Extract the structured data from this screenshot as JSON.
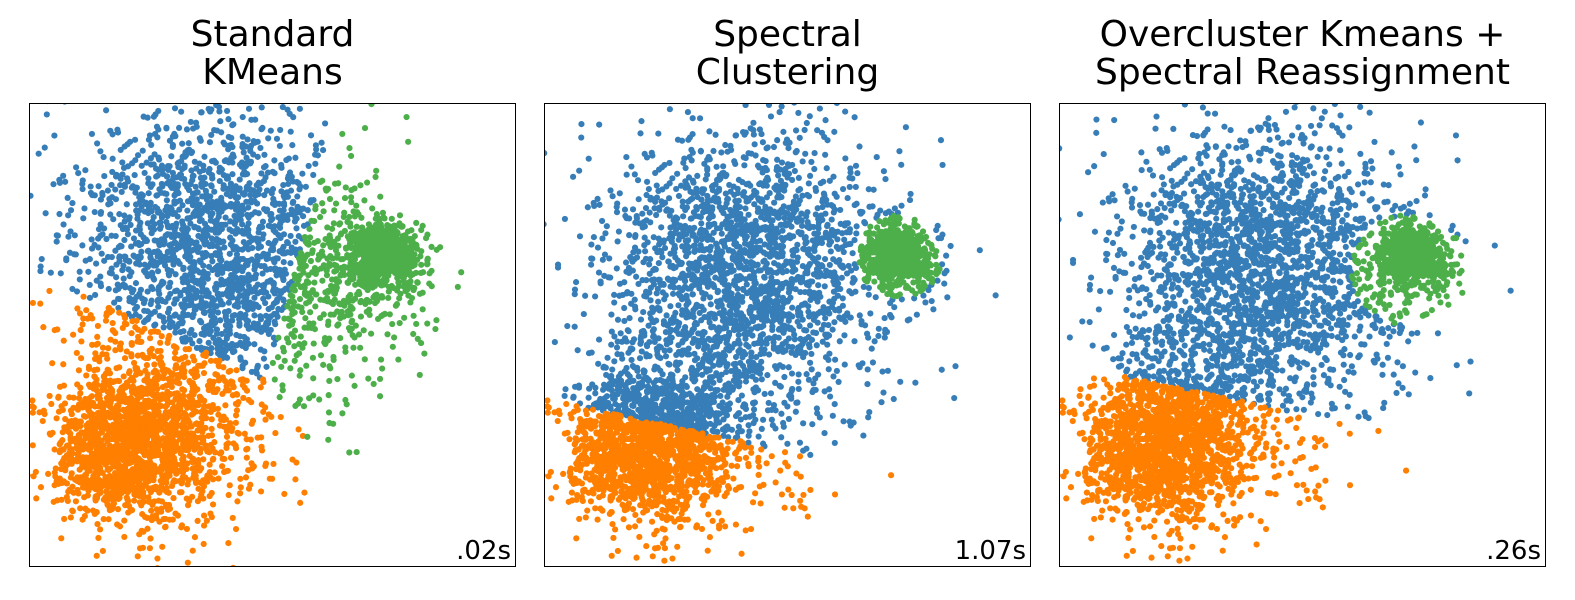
{
  "colors": {
    "cluster_1": "#377eb8",
    "cluster_2": "#ff7f00",
    "cluster_3": "#4daf4a"
  },
  "chart_data": [
    {
      "type": "scatter",
      "title_lines": [
        "Standard",
        "KMeans"
      ],
      "annotation": ".02s",
      "grid": false,
      "ticks": "none",
      "xlim": [
        -5,
        5
      ],
      "ylim": [
        -5,
        5
      ],
      "blobs": [
        {
          "center": [
            -1.3,
            2.0
          ],
          "std": 1.5,
          "n": 1800
        },
        {
          "center": [
            -2.9,
            -2.4
          ],
          "std": 0.8,
          "n": 1600
        },
        {
          "center": [
            -1.4,
            -1.0
          ],
          "std": 1.3,
          "n": 500
        },
        {
          "center": [
            2.3,
            1.7
          ],
          "std": 0.35,
          "n": 700
        },
        {
          "center": [
            1.6,
            1.0
          ],
          "std": 0.8,
          "n": 250
        }
      ],
      "assignment": {
        "method": "nearest_center",
        "centers": [
          [
            -1.0,
            2.1
          ],
          [
            -3.1,
            -2.2
          ],
          [
            2.1,
            1.3
          ]
        ]
      },
      "series": [
        {
          "color": "#377eb8"
        },
        {
          "color": "#ff7f00"
        },
        {
          "color": "#4daf4a"
        }
      ]
    },
    {
      "type": "scatter",
      "title_lines": [
        "Spectral",
        "Clustering"
      ],
      "annotation": "1.07s",
      "grid": false,
      "ticks": "none",
      "xlim": [
        -5,
        5
      ],
      "ylim": [
        -5,
        5
      ],
      "blobs": [
        {
          "center": [
            -0.9,
            1.5
          ],
          "std": 1.5,
          "n": 2000
        },
        {
          "center": [
            -2.9,
            -2.4
          ],
          "std": 0.8,
          "n": 1600
        },
        {
          "center": [
            -1.4,
            -1.5
          ],
          "std": 1.2,
          "n": 450
        },
        {
          "center": [
            2.3,
            1.7
          ],
          "std": 0.35,
          "n": 700
        }
      ],
      "assignment": {
        "method": "rules",
        "green": {
          "center": [
            2.3,
            1.7
          ],
          "radius": 0.9
        },
        "orange_line": {
          "x1": -4.5,
          "y1": -1.5,
          "x2": 0.8,
          "y2": -2.7
        }
      },
      "series": [
        {
          "color": "#377eb8"
        },
        {
          "color": "#ff7f00"
        },
        {
          "color": "#4daf4a"
        }
      ]
    },
    {
      "type": "scatter",
      "title_lines": [
        "Overcluster Kmeans +",
        "Spectral Reassignment"
      ],
      "annotation": ".26s",
      "grid": false,
      "ticks": "none",
      "xlim": [
        -5,
        5
      ],
      "ylim": [
        -5,
        5
      ],
      "blobs": [
        {
          "center": [
            -0.9,
            1.6
          ],
          "std": 1.5,
          "n": 2000
        },
        {
          "center": [
            -2.9,
            -2.4
          ],
          "std": 0.8,
          "n": 1600
        },
        {
          "center": [
            -1.4,
            -1.3
          ],
          "std": 1.2,
          "n": 450
        },
        {
          "center": [
            2.3,
            1.7
          ],
          "std": 0.35,
          "n": 700
        },
        {
          "center": [
            1.6,
            0.6
          ],
          "std": 0.6,
          "n": 60
        }
      ],
      "assignment": {
        "method": "rules",
        "green": {
          "center": [
            2.2,
            1.4
          ],
          "radius": 1.2
        },
        "orange_line": {
          "x1": -4.5,
          "y1": -0.7,
          "x2": 0.8,
          "y2": -1.9
        }
      },
      "series": [
        {
          "color": "#377eb8"
        },
        {
          "color": "#ff7f00"
        },
        {
          "color": "#4daf4a"
        }
      ]
    }
  ]
}
